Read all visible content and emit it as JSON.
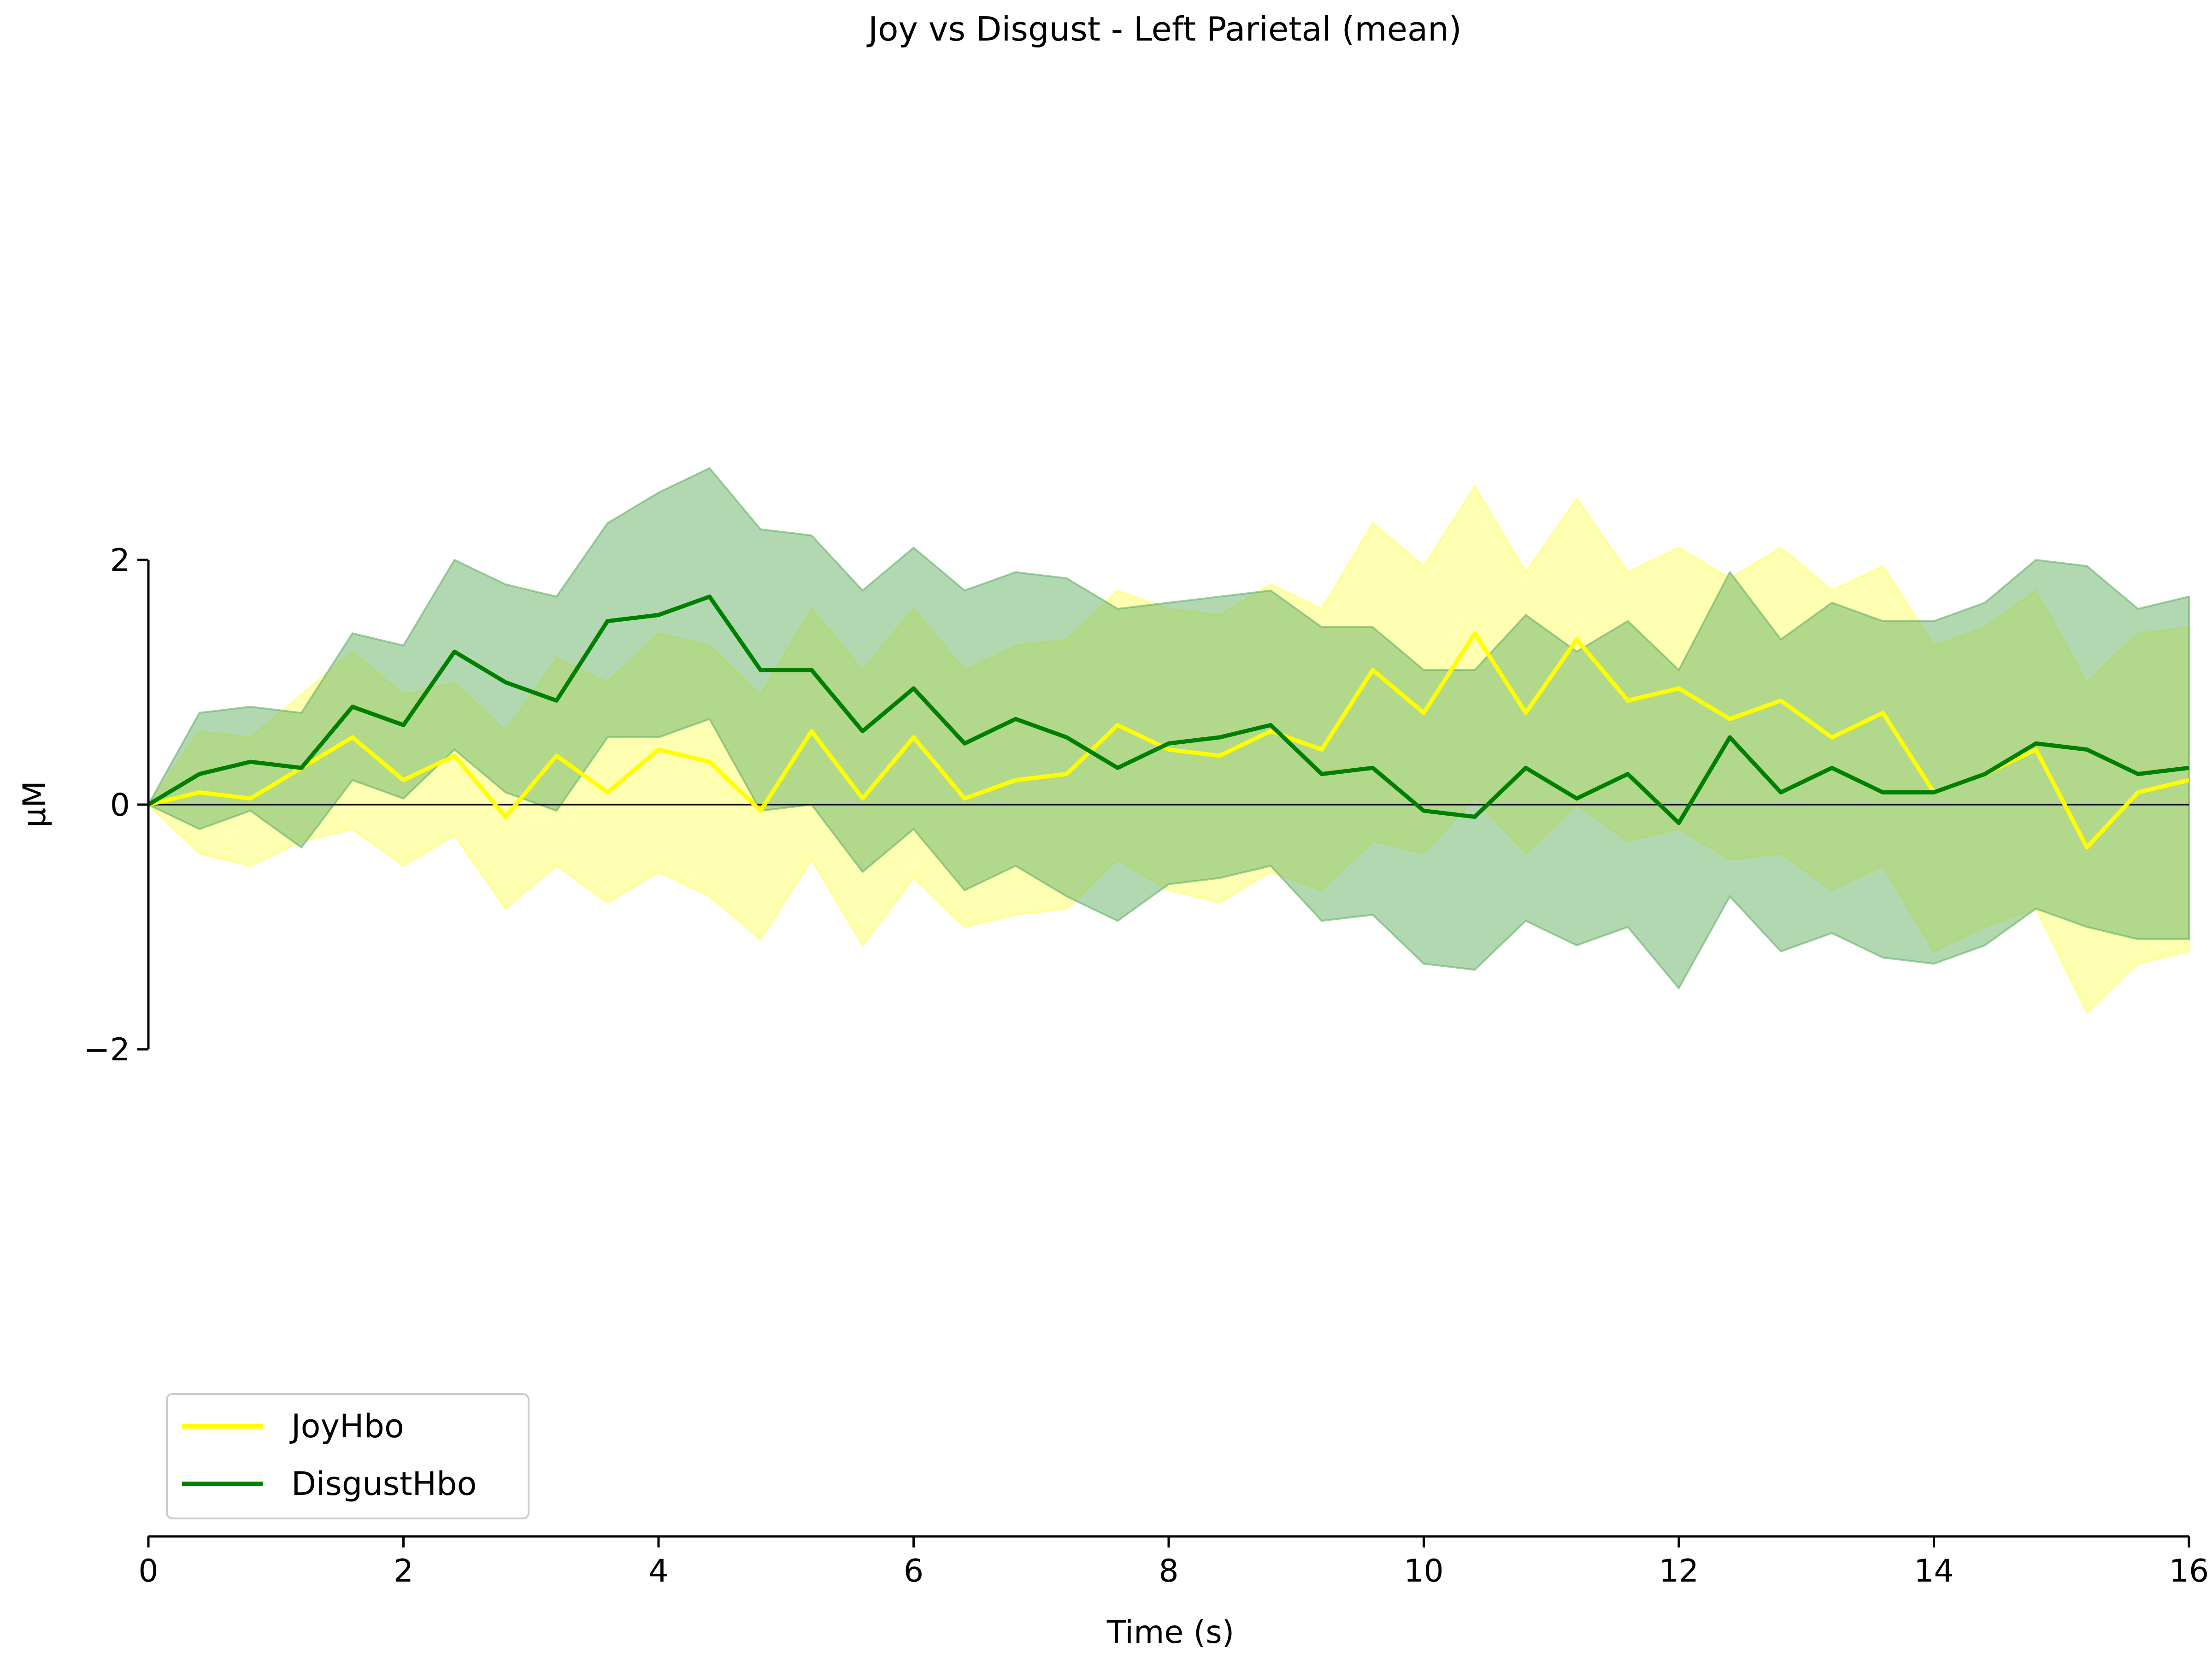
{
  "chart_data": {
    "type": "line",
    "title": "Joy vs Disgust - Left Parietal (mean)",
    "xlabel": "Time (s)",
    "ylabel": "µM",
    "xlim": [
      0,
      16
    ],
    "ylim": [
      -2,
      2
    ],
    "x_ticks": [
      0,
      2,
      4,
      6,
      8,
      10,
      12,
      14,
      16
    ],
    "x_tick_labels": [
      "0",
      "2",
      "4",
      "6",
      "8",
      "10",
      "12",
      "14",
      "16"
    ],
    "y_ticks": [
      -2,
      0,
      2
    ],
    "y_tick_labels": [
      "−2",
      "0",
      "2"
    ],
    "grid": false,
    "legend": {
      "position": "lower-left",
      "entries": [
        "JoyHbo",
        "DisgustHbo"
      ]
    },
    "zero_line": true,
    "x": [
      0,
      0.4,
      0.8,
      1.2,
      1.6,
      2.0,
      2.4,
      2.8,
      3.2,
      3.6,
      4.0,
      4.4,
      4.8,
      5.2,
      5.6,
      6.0,
      6.4,
      6.8,
      7.2,
      7.6,
      8.0,
      8.4,
      8.8,
      9.2,
      9.6,
      10.0,
      10.4,
      10.8,
      11.2,
      11.6,
      12.0,
      12.4,
      12.8,
      13.2,
      13.6,
      14.0,
      14.4,
      14.8,
      15.2,
      15.6,
      16.0
    ],
    "series": [
      {
        "name": "JoyHbo",
        "color": "#ffff00",
        "band_color": "#ffff66",
        "mean": [
          0,
          0.1,
          0.05,
          0.3,
          0.55,
          0.2,
          0.4,
          -0.1,
          0.4,
          0.1,
          0.45,
          0.35,
          -0.05,
          0.6,
          0.05,
          0.55,
          0.05,
          0.2,
          0.25,
          0.65,
          0.45,
          0.4,
          0.6,
          0.45,
          1.1,
          0.75,
          1.4,
          0.75,
          1.35,
          0.85,
          0.95,
          0.7,
          0.85,
          0.55,
          0.75,
          0.1,
          0.25,
          0.45,
          -0.35,
          0.1,
          0.2
        ],
        "upper": [
          0,
          0.6,
          0.55,
          0.9,
          1.25,
          0.9,
          1.0,
          0.6,
          1.2,
          1.0,
          1.4,
          1.3,
          0.9,
          1.6,
          1.1,
          1.6,
          1.1,
          1.3,
          1.35,
          1.75,
          1.6,
          1.55,
          1.8,
          1.6,
          2.3,
          1.95,
          2.6,
          1.9,
          2.5,
          1.9,
          2.1,
          1.85,
          2.1,
          1.75,
          1.95,
          1.3,
          1.45,
          1.75,
          1.0,
          1.4,
          1.45
        ],
        "lower": [
          0,
          -0.4,
          -0.5,
          -0.3,
          -0.2,
          -0.5,
          -0.25,
          -0.85,
          -0.5,
          -0.8,
          -0.55,
          -0.75,
          -1.1,
          -0.45,
          -1.15,
          -0.6,
          -1.0,
          -0.9,
          -0.85,
          -0.45,
          -0.7,
          -0.8,
          -0.55,
          -0.7,
          -0.3,
          -0.4,
          0.05,
          -0.4,
          0.0,
          -0.3,
          -0.2,
          -0.45,
          -0.4,
          -0.7,
          -0.5,
          -1.2,
          -1.0,
          -0.85,
          -1.7,
          -1.3,
          -1.2
        ]
      },
      {
        "name": "DisgustHbo",
        "color": "#008000",
        "band_color": "#66b266",
        "mean": [
          0,
          0.25,
          0.35,
          0.3,
          0.8,
          0.65,
          1.25,
          1.0,
          0.85,
          1.5,
          1.55,
          1.7,
          1.1,
          1.1,
          0.6,
          0.95,
          0.5,
          0.7,
          0.55,
          0.3,
          0.5,
          0.55,
          0.65,
          0.25,
          0.3,
          -0.05,
          -0.1,
          0.3,
          0.05,
          0.25,
          -0.15,
          0.55,
          0.1,
          0.3,
          0.1,
          0.1,
          0.25,
          0.5,
          0.45,
          0.25,
          0.3
        ],
        "upper": [
          0,
          0.75,
          0.8,
          0.75,
          1.4,
          1.3,
          2.0,
          1.8,
          1.7,
          2.3,
          2.55,
          2.75,
          2.25,
          2.2,
          1.75,
          2.1,
          1.75,
          1.9,
          1.85,
          1.6,
          1.65,
          1.7,
          1.75,
          1.45,
          1.45,
          1.1,
          1.1,
          1.55,
          1.25,
          1.5,
          1.1,
          1.9,
          1.35,
          1.65,
          1.5,
          1.5,
          1.65,
          2.0,
          1.95,
          1.6,
          1.7
        ],
        "lower": [
          0,
          -0.2,
          -0.05,
          -0.35,
          0.2,
          0.05,
          0.45,
          0.1,
          -0.05,
          0.55,
          0.55,
          0.7,
          -0.05,
          0.0,
          -0.55,
          -0.2,
          -0.7,
          -0.5,
          -0.75,
          -0.95,
          -0.65,
          -0.6,
          -0.5,
          -0.95,
          -0.9,
          -1.3,
          -1.35,
          -0.95,
          -1.15,
          -1.0,
          -1.5,
          -0.75,
          -1.2,
          -1.05,
          -1.25,
          -1.3,
          -1.15,
          -0.85,
          -1.0,
          -1.1,
          -1.1
        ]
      }
    ]
  }
}
